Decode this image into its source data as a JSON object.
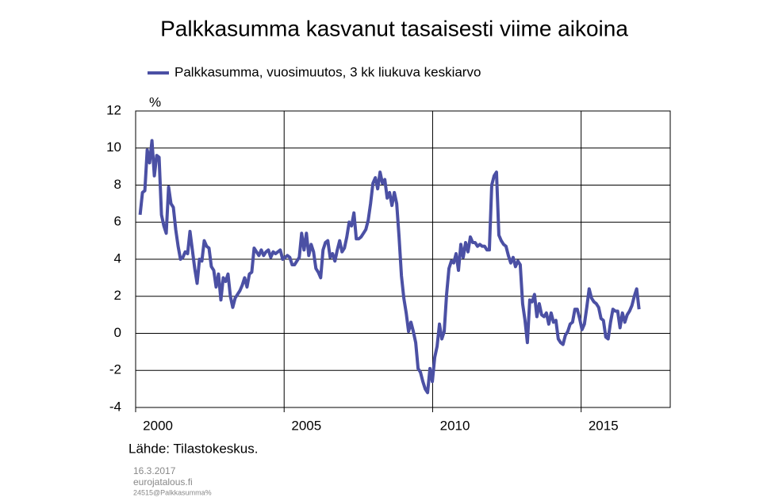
{
  "chart_data": {
    "type": "line",
    "title": "Palkkasumma kasvanut tasaisesti viime aikoina",
    "y_unit": "%",
    "source": "Lähde: Tilastokeskus.",
    "footnotes": [
      "16.3.2017",
      "eurojatalous.fi",
      "24515@Palkkasumma%"
    ],
    "xlim": [
      2000,
      2018
    ],
    "xticks": [
      2000,
      2005,
      2010,
      2015
    ],
    "ylim": [
      -4,
      12
    ],
    "yticks": [
      -4,
      -2,
      0,
      2,
      4,
      6,
      8,
      10,
      12
    ],
    "grid": true,
    "legend": "top",
    "x": [
      2000.15,
      2000.23,
      2000.31,
      2000.39,
      2000.47,
      2000.55,
      2000.63,
      2000.71,
      2000.79,
      2000.87,
      2000.95,
      2001.03,
      2001.11,
      2001.19,
      2001.27,
      2001.35,
      2001.43,
      2001.51,
      2001.59,
      2001.67,
      2001.75,
      2001.83,
      2001.91,
      2001.99,
      2002.07,
      2002.15,
      2002.23,
      2002.31,
      2002.39,
      2002.47,
      2002.55,
      2002.63,
      2002.71,
      2002.79,
      2002.87,
      2002.95,
      2003.03,
      2003.11,
      2003.19,
      2003.27,
      2003.35,
      2003.43,
      2003.51,
      2003.59,
      2003.67,
      2003.75,
      2003.83,
      2003.91,
      2003.99,
      2004.07,
      2004.15,
      2004.23,
      2004.31,
      2004.39,
      2004.47,
      2004.55,
      2004.63,
      2004.71,
      2004.79,
      2004.87,
      2004.95,
      2005.03,
      2005.11,
      2005.19,
      2005.27,
      2005.35,
      2005.43,
      2005.51,
      2005.59,
      2005.67,
      2005.75,
      2005.83,
      2005.91,
      2005.99,
      2006.07,
      2006.15,
      2006.23,
      2006.31,
      2006.39,
      2006.47,
      2006.55,
      2006.63,
      2006.71,
      2006.79,
      2006.87,
      2006.95,
      2007.03,
      2007.11,
      2007.19,
      2007.27,
      2007.35,
      2007.43,
      2007.51,
      2007.59,
      2007.67,
      2007.75,
      2007.83,
      2007.91,
      2007.99,
      2008.07,
      2008.15,
      2008.23,
      2008.31,
      2008.39,
      2008.47,
      2008.55,
      2008.63,
      2008.71,
      2008.79,
      2008.87,
      2008.95,
      2009.03,
      2009.11,
      2009.19,
      2009.27,
      2009.35,
      2009.43,
      2009.51,
      2009.59,
      2009.67,
      2009.75,
      2009.83,
      2009.91,
      2009.99,
      2010.07,
      2010.15,
      2010.23,
      2010.31,
      2010.39,
      2010.47,
      2010.55,
      2010.63,
      2010.71,
      2010.79,
      2010.87,
      2010.95,
      2011.03,
      2011.11,
      2011.19,
      2011.27,
      2011.35,
      2011.43,
      2011.51,
      2011.59,
      2011.67,
      2011.75,
      2011.83,
      2011.91,
      2011.99,
      2012.07,
      2012.15,
      2012.23,
      2012.31,
      2012.39,
      2012.47,
      2012.55,
      2012.63,
      2012.71,
      2012.79,
      2012.87,
      2012.95,
      2013.03,
      2013.11,
      2013.19,
      2013.27,
      2013.35,
      2013.43,
      2013.51,
      2013.59,
      2013.67,
      2013.75,
      2013.83,
      2013.91,
      2013.99,
      2014.07,
      2014.15,
      2014.23,
      2014.31,
      2014.39,
      2014.47,
      2014.55,
      2014.63,
      2014.71,
      2014.79,
      2014.87,
      2014.95,
      2015.03,
      2015.11,
      2015.19,
      2015.27,
      2015.35,
      2015.43,
      2015.51,
      2015.59,
      2015.67,
      2015.75,
      2015.83,
      2015.91,
      2015.99,
      2016.07,
      2016.15,
      2016.23,
      2016.31,
      2016.39,
      2016.47,
      2016.55,
      2016.63,
      2016.71,
      2016.79,
      2016.87,
      2016.95
    ],
    "series": [
      {
        "name": "Palkkasumma, vuosimuutos, 3 kk  liukuva keskiarvo",
        "color": "#4b50a4",
        "values": [
          6.4,
          7.6,
          7.7,
          9.9,
          9.2,
          10.4,
          8.5,
          9.6,
          9.5,
          6.4,
          5.8,
          5.4,
          7.9,
          7.0,
          6.8,
          5.6,
          4.7,
          4.0,
          4.1,
          4.4,
          4.3,
          5.5,
          4.5,
          3.5,
          2.7,
          4.0,
          3.9,
          5.0,
          4.7,
          4.6,
          3.6,
          3.4,
          2.5,
          3.2,
          1.8,
          3.0,
          2.8,
          3.2,
          2.0,
          1.4,
          1.9,
          2.1,
          2.3,
          2.6,
          3.0,
          2.5,
          3.2,
          3.3,
          4.6,
          4.4,
          4.2,
          4.5,
          4.2,
          4.4,
          4.5,
          4.1,
          4.4,
          4.3,
          4.4,
          4.5,
          4.0,
          4.1,
          4.2,
          4.1,
          3.7,
          3.7,
          3.9,
          4.1,
          5.4,
          4.5,
          5.4,
          4.2,
          4.8,
          4.4,
          3.5,
          3.3,
          3.0,
          4.5,
          4.9,
          5.0,
          4.1,
          4.3,
          3.9,
          4.5,
          5.0,
          4.4,
          4.6,
          5.2,
          6.0,
          5.8,
          6.5,
          5.1,
          5.1,
          5.2,
          5.4,
          5.6,
          6.1,
          7.0,
          8.1,
          8.4,
          7.8,
          8.7,
          8.1,
          8.3,
          7.3,
          7.6,
          6.9,
          7.6,
          7.0,
          5.2,
          3.1,
          1.9,
          1.1,
          0.1,
          0.6,
          0.1,
          -0.5,
          -1.9,
          -2.1,
          -2.6,
          -3.0,
          -3.2,
          -1.9,
          -2.6,
          -1.3,
          -0.7,
          0.5,
          -0.3,
          0.1,
          2.1,
          3.5,
          3.9,
          3.8,
          4.3,
          3.4,
          4.8,
          4.1,
          4.9,
          4.4,
          5.2,
          4.9,
          4.9,
          4.7,
          4.8,
          4.7,
          4.7,
          4.5,
          4.5,
          8.0,
          8.5,
          8.7,
          5.3,
          5.0,
          4.8,
          4.7,
          4.2,
          3.8,
          4.1,
          3.6,
          3.9,
          3.7,
          1.6,
          0.7,
          -0.5,
          1.8,
          1.7,
          2.1,
          0.9,
          1.6,
          1.0,
          0.9,
          1.1,
          0.5,
          1.1,
          0.6,
          0.7,
          -0.3,
          -0.5,
          -0.6,
          -0.1,
          0.1,
          0.5,
          0.6,
          1.3,
          1.3,
          0.8,
          0.2,
          0.5,
          1.4,
          2.4,
          1.9,
          1.7,
          1.6,
          1.4,
          0.8,
          0.7,
          -0.2,
          -0.3,
          0.6,
          1.3,
          1.2,
          1.2,
          0.3,
          1.1,
          0.6,
          1.0,
          1.2,
          1.5,
          2.0,
          2.4,
          1.3
        ]
      }
    ]
  }
}
